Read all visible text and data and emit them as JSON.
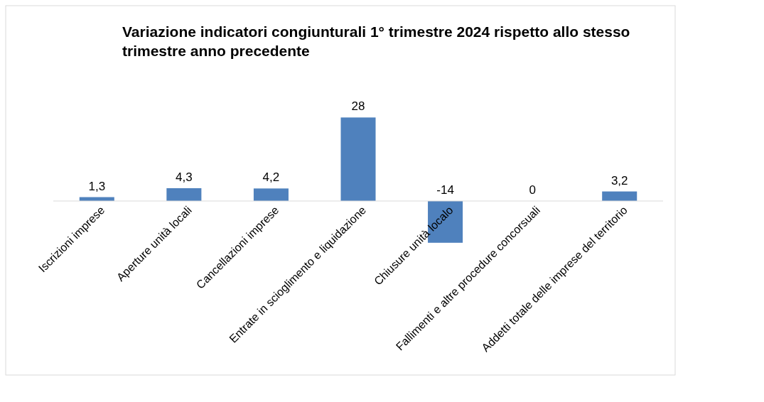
{
  "chart_data": {
    "type": "bar",
    "title": "Variazione indicatori congiunturali 1° trimestre 2024 rispetto allo stesso trimestre anno precedente",
    "categories": [
      "Iscrizioni imprese",
      "Aperture unità locali",
      "Cancellazioni imprese",
      "Entrate in scioglimento e liquidazione",
      "Chiusure unità localo",
      "Fallimenti e altre procedure concorsuali",
      "Addetti totale delle imprese del territorio"
    ],
    "values": [
      1.3,
      4.3,
      4.2,
      28,
      -14,
      0,
      3.2
    ],
    "value_labels": [
      "1,3",
      "4,3",
      "4,2",
      "28",
      "-14",
      "0",
      "3,2"
    ],
    "color": "#4f81bd"
  }
}
